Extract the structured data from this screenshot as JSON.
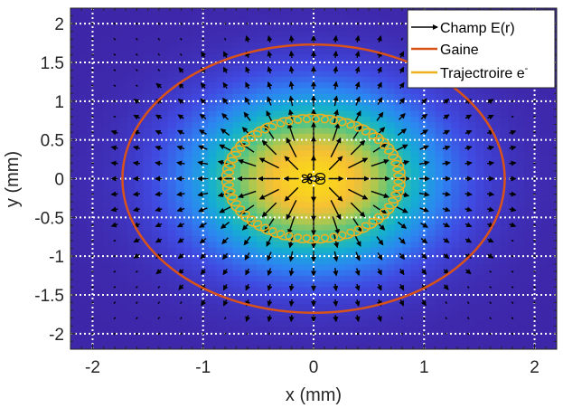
{
  "chart_data": {
    "type": "heatmap",
    "title": "",
    "xlabel": "x (mm)",
    "ylabel": "y (mm)",
    "xlim": [
      -2.2,
      2.2
    ],
    "ylim": [
      -2.2,
      2.2
    ],
    "x_ticks": [
      -2,
      -1,
      0,
      1,
      2
    ],
    "y_ticks": [
      -2,
      -1.5,
      -1,
      -0.5,
      0,
      0.5,
      1,
      1.5,
      2
    ],
    "x_tick_labels": [
      "-2",
      "-1",
      "0",
      "1",
      "2"
    ],
    "y_tick_labels": [
      "-2",
      "-1.5",
      "-1",
      "-0.5",
      "0",
      "0.5",
      "1",
      "1.5",
      "2"
    ],
    "grid": true,
    "grid_style": "dotted white",
    "legend_position": "top-right",
    "colormap": "parula",
    "heatmap": {
      "description_values": "Gaussian density centered at (0,0), peak 1.0",
      "center": [
        0,
        0
      ],
      "sigma_mm": 0.75,
      "peak": 1.0
    },
    "series": [
      {
        "name": "Champ E(r)",
        "kind": "quiver",
        "color": "#000000",
        "grid_step_mm": 0.2,
        "direction": "radial outward",
        "max_radius_mm": 1.7
      },
      {
        "name": "Gaine",
        "kind": "ellipse",
        "color": "#D95319",
        "center": [
          0,
          0
        ],
        "radius_mm": 1.73
      },
      {
        "name": "Trajectroire e",
        "legend_superscript": "-",
        "kind": "orbit",
        "color": "#EDB120",
        "center": [
          0,
          0
        ],
        "radius_mm": 0.78,
        "loop_radius_mm": 0.05,
        "loops": 60
      }
    ],
    "colors": {
      "background_low": "#3E26A8",
      "gaine": "#D95319",
      "trajectoire": "#EDB120",
      "arrows": "#000000",
      "grid": "#FFFFFF"
    }
  }
}
